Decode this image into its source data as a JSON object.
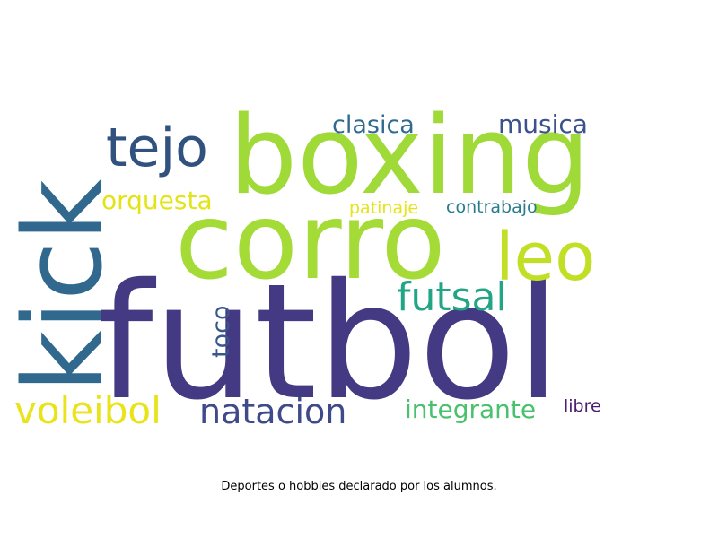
{
  "wordcloud": {
    "words": [
      {
        "text": "futbol",
        "color": "#443983"
      },
      {
        "text": "kick",
        "color": "#31688e"
      },
      {
        "text": "boxing",
        "color": "#a0da39"
      },
      {
        "text": "corro",
        "color": "#a5db36"
      },
      {
        "text": "tejo",
        "color": "#31527f"
      },
      {
        "text": "leo",
        "color": "#c0df25"
      },
      {
        "text": "futsal",
        "color": "#21a585"
      },
      {
        "text": "clasica",
        "color": "#2f6b8e"
      },
      {
        "text": "musica",
        "color": "#3b528b"
      },
      {
        "text": "orquesta",
        "color": "#e3e418"
      },
      {
        "text": "patinaje",
        "color": "#e5e419"
      },
      {
        "text": "contrabajo",
        "color": "#287c8e"
      },
      {
        "text": "toco",
        "color": "#38588c"
      },
      {
        "text": "voleibol",
        "color": "#e8e419"
      },
      {
        "text": "natacion",
        "color": "#3e4a89"
      },
      {
        "text": "integrante",
        "color": "#4ac16d"
      },
      {
        "text": "libre",
        "color": "#4b1c6c"
      }
    ]
  },
  "caption": "Deportes o hobbies declarado por los alumnos."
}
